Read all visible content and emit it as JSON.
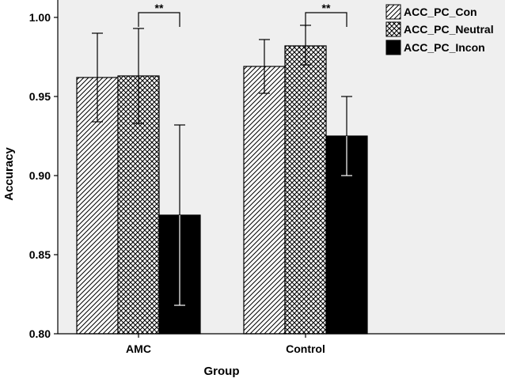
{
  "chart_data": {
    "type": "bar",
    "title": "",
    "xlabel": "Group",
    "ylabel": "Accuracy",
    "ylim": [
      0.8,
      1.01
    ],
    "yticks": [
      "0.80",
      "0.85",
      "0.90",
      "0.95",
      "1.00"
    ],
    "ytick_values": [
      0.8,
      0.85,
      0.9,
      0.95,
      1.0
    ],
    "categories": [
      "AMC",
      "Control"
    ],
    "series": [
      {
        "name": "ACC_PC_Con",
        "pattern": "diagonal-hatch",
        "values": [
          0.962,
          0.969
        ],
        "err_upper": [
          0.99,
          0.986
        ],
        "err_lower": [
          0.934,
          0.952
        ]
      },
      {
        "name": "ACC_PC_Neutral",
        "pattern": "crosshatch",
        "values": [
          0.963,
          0.982
        ],
        "err_upper": [
          0.993,
          0.995
        ],
        "err_lower": [
          0.933,
          0.97
        ]
      },
      {
        "name": "ACC_PC_Incon",
        "pattern": "solid-black",
        "values": [
          0.875,
          0.925
        ],
        "err_upper": [
          0.932,
          0.95
        ],
        "err_lower": [
          0.818,
          0.9
        ]
      }
    ],
    "annotations": [
      {
        "text": "**",
        "category": "AMC",
        "between": [
          "ACC_PC_Neutral",
          "ACC_PC_Incon"
        ]
      },
      {
        "text": "**",
        "category": "Control",
        "between": [
          "ACC_PC_Neutral",
          "ACC_PC_Incon"
        ]
      }
    ],
    "legend_position": "top-right",
    "grid": false,
    "colors": {
      "plot_background": "#efefef",
      "bar_fill_dark": "#000000",
      "bar_fill_light": "#ffffff"
    }
  }
}
